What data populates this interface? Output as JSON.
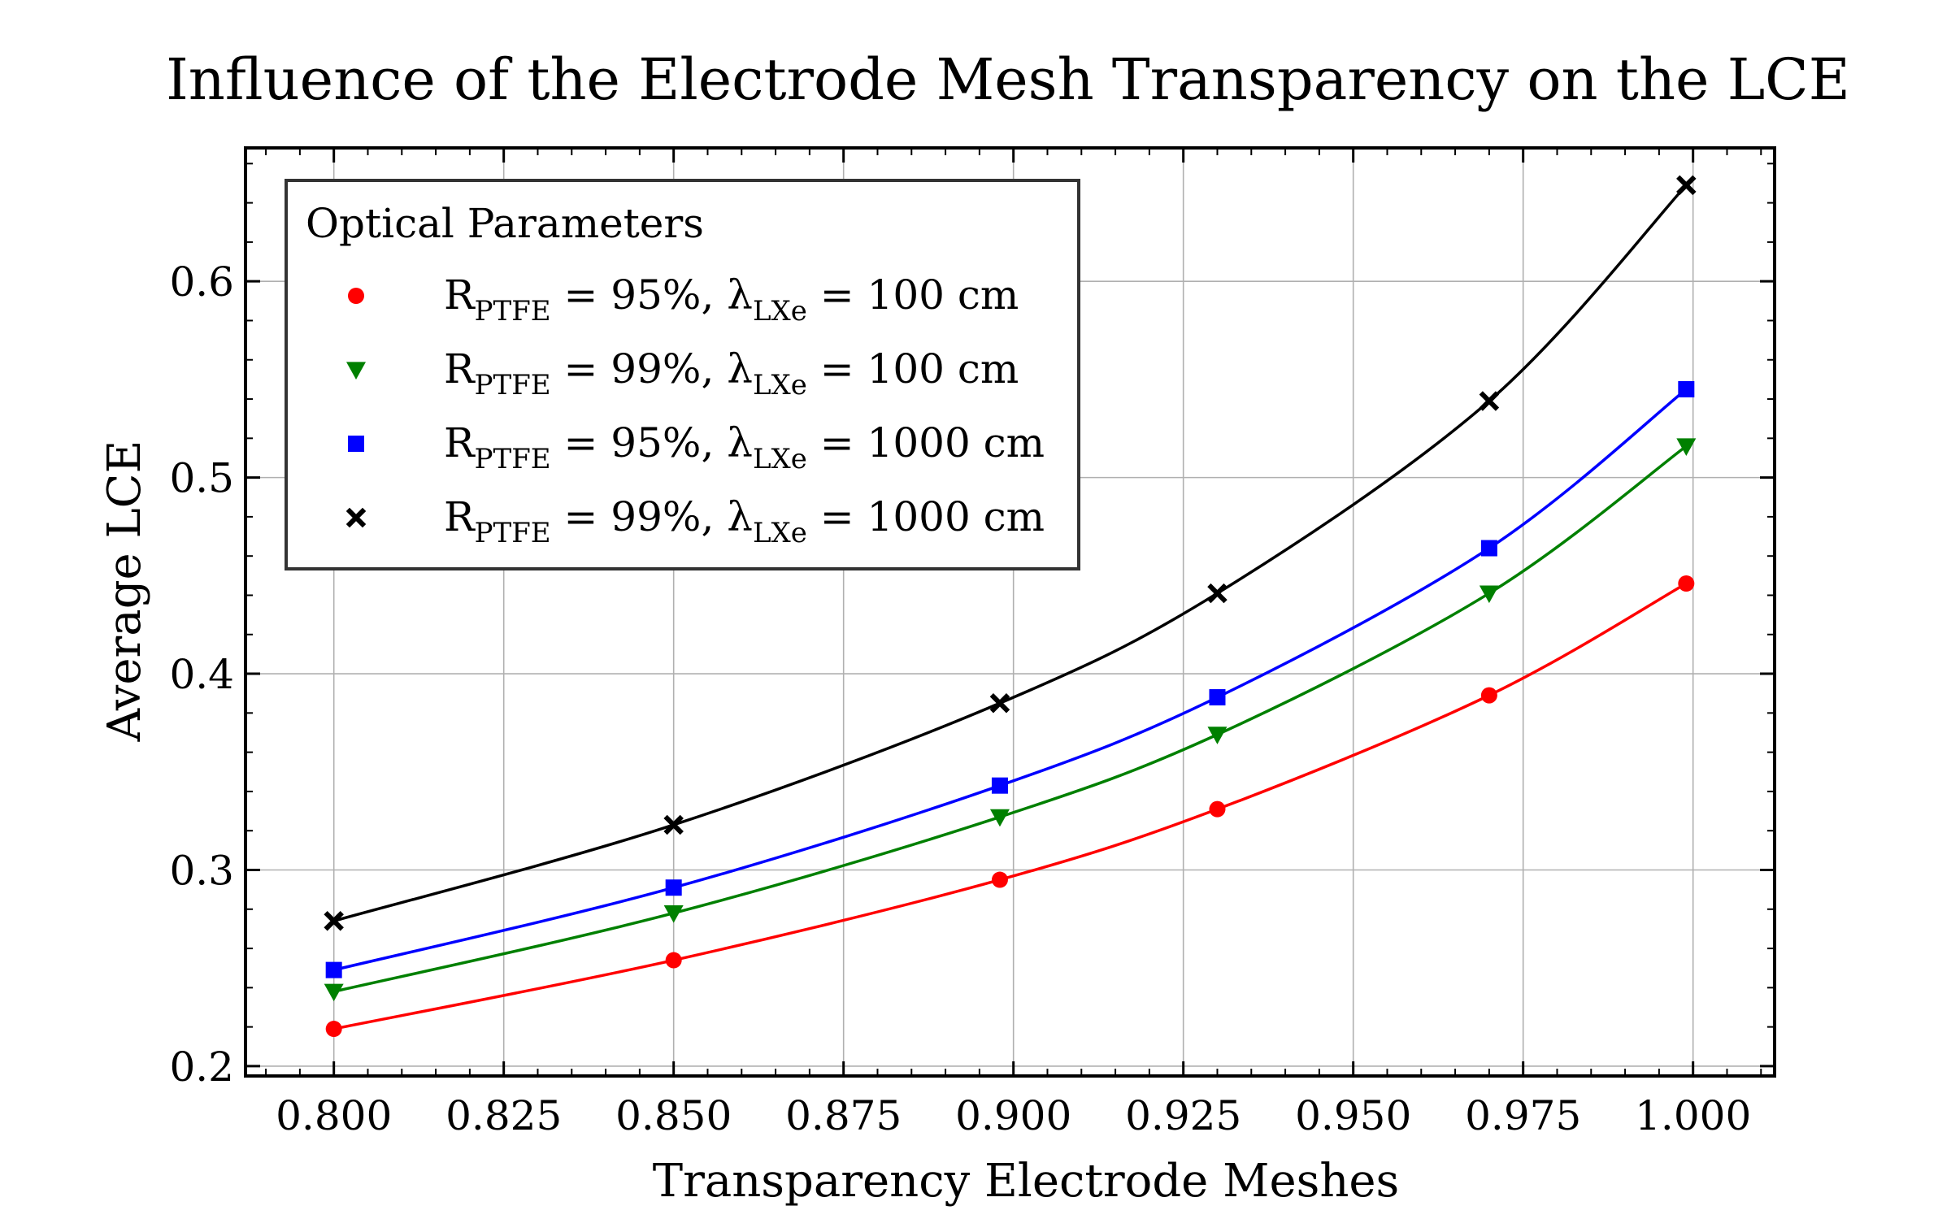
{
  "chart_data": {
    "type": "line",
    "title": "Influence of the Electrode Mesh Transparency on the LCE",
    "xlabel": "Transparency Electrode Meshes",
    "ylabel": "Average LCE",
    "xlim": [
      0.787,
      1.012
    ],
    "ylim": [
      0.195,
      0.668
    ],
    "xticks": [
      0.8,
      0.825,
      0.85,
      0.875,
      0.9,
      0.925,
      0.95,
      0.975,
      1.0
    ],
    "xtick_labels": [
      "0.800",
      "0.825",
      "0.850",
      "0.875",
      "0.900",
      "0.925",
      "0.950",
      "0.975",
      "1.000"
    ],
    "yticks": [
      0.2,
      0.3,
      0.4,
      0.5,
      0.6
    ],
    "ytick_labels": [
      "0.2",
      "0.3",
      "0.4",
      "0.5",
      "0.6"
    ],
    "grid": true,
    "legend": {
      "title": "Optical Parameters",
      "placement": "top-left"
    },
    "x": [
      0.8,
      0.85,
      0.898,
      0.93,
      0.97,
      0.999
    ],
    "series": [
      {
        "name": "R_PTFE = 95%, λ_LXe = 100 cm",
        "label_parts": {
          "r": "R",
          "r_sub": "PTFE",
          "pct": " = 95%, ",
          "lam": "λ",
          "lam_sub": "LXe",
          "rest": " = 100 cm"
        },
        "color": "#ff0000",
        "marker": "circle",
        "values": [
          0.219,
          0.254,
          0.295,
          0.331,
          0.389,
          0.446
        ]
      },
      {
        "name": "R_PTFE = 99%, λ_LXe = 100 cm",
        "label_parts": {
          "r": "R",
          "r_sub": "PTFE",
          "pct": " = 99%, ",
          "lam": "λ",
          "lam_sub": "LXe",
          "rest": " = 100 cm"
        },
        "color": "#008000",
        "marker": "triangle-down",
        "values": [
          0.238,
          0.278,
          0.327,
          0.369,
          0.441,
          0.516
        ]
      },
      {
        "name": "R_PTFE = 95%, λ_LXe = 1000 cm",
        "label_parts": {
          "r": "R",
          "r_sub": "PTFE",
          "pct": " = 95%, ",
          "lam": "λ",
          "lam_sub": "LXe",
          "rest": " = 1000 cm"
        },
        "color": "#0000ff",
        "marker": "square",
        "values": [
          0.249,
          0.291,
          0.343,
          0.388,
          0.464,
          0.545
        ]
      },
      {
        "name": "R_PTFE = 99%, λ_LXe = 1000 cm",
        "label_parts": {
          "r": "R",
          "r_sub": "PTFE",
          "pct": " = 99%, ",
          "lam": "λ",
          "lam_sub": "LXe",
          "rest": " = 1000 cm"
        },
        "color": "#000000",
        "marker": "x",
        "values": [
          0.274,
          0.323,
          0.385,
          0.441,
          0.539,
          0.649
        ]
      }
    ]
  }
}
